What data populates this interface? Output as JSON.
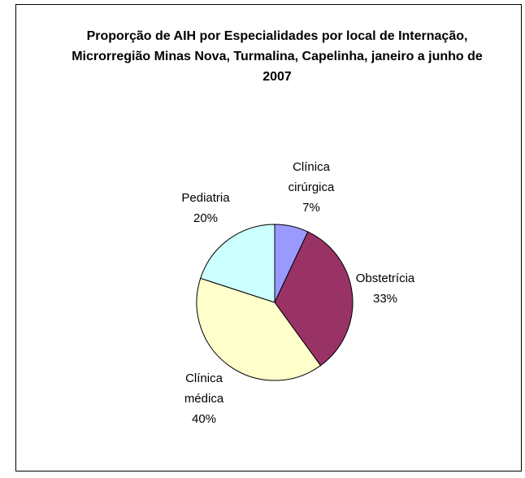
{
  "chart_data": {
    "type": "pie",
    "title": "Proporção de AIH por Especialidades por local de Internação, Microrregião Minas Nova, Turmalina, Capelinha, janeiro a junho de 2007",
    "categories": [
      "Clínica cirúrgica",
      "Obstetrícia",
      "Clínica médica",
      "Pediatria"
    ],
    "values": [
      7,
      33,
      40,
      20
    ],
    "value_labels": [
      "7%",
      "33%",
      "40%",
      "20%"
    ],
    "colors": [
      "#9999ff",
      "#993366",
      "#ffffcc",
      "#ccffff"
    ]
  }
}
